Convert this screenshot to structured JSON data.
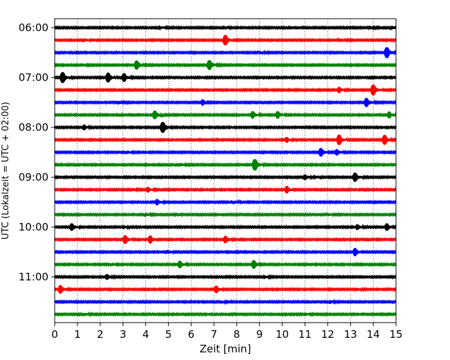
{
  "chart_data": {
    "type": "line",
    "title": "",
    "xlabel": "Zeit  [min]",
    "ylabel": "UTC (Lokalzeit = UTC + 02:00)",
    "xlim": [
      0,
      15
    ],
    "x_ticks": [
      "0",
      "1",
      "2",
      "3",
      "4",
      "5",
      "6",
      "7",
      "8",
      "9",
      "10",
      "11",
      "12",
      "13",
      "14",
      "15"
    ],
    "y_ticks": [
      "06:00",
      "07:00",
      "08:00",
      "09:00",
      "10:00",
      "11:00"
    ],
    "y_tick_traces": [
      0,
      4,
      8,
      12,
      16,
      20
    ],
    "minutes_per_trace": 15,
    "grid_x": "dotted vertical lines at each minute",
    "trace_colors": [
      "#000000",
      "#ff0000",
      "#0000ff",
      "#008000"
    ],
    "traces": [
      {
        "start": "06:00",
        "color": "#000000",
        "events": [
          {
            "t": 4.6,
            "a": 0.25
          },
          {
            "t": 7.5,
            "a": 0.2
          },
          {
            "t": 13.8,
            "a": 0.25
          },
          {
            "t": 14.8,
            "a": 0.2
          }
        ]
      },
      {
        "start": "06:15",
        "color": "#ff0000",
        "events": [
          {
            "t": 7.5,
            "a": 0.7
          },
          {
            "t": 1.3,
            "a": 0.2
          },
          {
            "t": 12.5,
            "a": 0.2
          }
        ]
      },
      {
        "start": "06:30",
        "color": "#0000ff",
        "events": [
          {
            "t": 14.6,
            "a": 0.75
          },
          {
            "t": 9.0,
            "a": 0.2
          }
        ]
      },
      {
        "start": "06:45",
        "color": "#008000",
        "events": [
          {
            "t": 3.6,
            "a": 0.6
          },
          {
            "t": 6.8,
            "a": 0.65
          },
          {
            "t": 1.2,
            "a": 0.2
          }
        ]
      },
      {
        "start": "07:00",
        "color": "#000000",
        "events": [
          {
            "t": 0.35,
            "a": 0.75
          },
          {
            "t": 2.35,
            "a": 0.65
          },
          {
            "t": 3.05,
            "a": 0.55
          }
        ]
      },
      {
        "start": "07:15",
        "color": "#ff0000",
        "events": [
          {
            "t": 14.0,
            "a": 0.75
          },
          {
            "t": 12.5,
            "a": 0.35
          }
        ]
      },
      {
        "start": "07:30",
        "color": "#0000ff",
        "events": [
          {
            "t": 13.7,
            "a": 0.6
          },
          {
            "t": 6.5,
            "a": 0.35
          },
          {
            "t": 2.8,
            "a": 0.2
          }
        ]
      },
      {
        "start": "07:45",
        "color": "#008000",
        "events": [
          {
            "t": 4.4,
            "a": 0.55
          },
          {
            "t": 8.7,
            "a": 0.45
          },
          {
            "t": 9.8,
            "a": 0.45
          },
          {
            "t": 14.7,
            "a": 0.4
          }
        ]
      },
      {
        "start": "08:00",
        "color": "#000000",
        "events": [
          {
            "t": 4.75,
            "a": 0.75
          },
          {
            "t": 1.3,
            "a": 0.3
          }
        ]
      },
      {
        "start": "08:15",
        "color": "#ff0000",
        "events": [
          {
            "t": 12.5,
            "a": 0.7
          },
          {
            "t": 14.5,
            "a": 0.65
          },
          {
            "t": 10.2,
            "a": 0.3
          }
        ]
      },
      {
        "start": "08:30",
        "color": "#0000ff",
        "events": [
          {
            "t": 11.7,
            "a": 0.55
          },
          {
            "t": 12.4,
            "a": 0.35
          },
          {
            "t": 3.2,
            "a": 0.2
          }
        ]
      },
      {
        "start": "08:45",
        "color": "#008000",
        "events": [
          {
            "t": 8.8,
            "a": 0.8
          },
          {
            "t": 5.5,
            "a": 0.25
          }
        ]
      },
      {
        "start": "09:00",
        "color": "#000000",
        "events": [
          {
            "t": 13.2,
            "a": 0.6
          },
          {
            "t": 11.0,
            "a": 0.3
          },
          {
            "t": 11.4,
            "a": 0.25
          }
        ]
      },
      {
        "start": "09:15",
        "color": "#ff0000",
        "events": [
          {
            "t": 10.2,
            "a": 0.45
          },
          {
            "t": 4.1,
            "a": 0.3
          },
          {
            "t": 3.4,
            "a": 0.2
          }
        ]
      },
      {
        "start": "09:30",
        "color": "#0000ff",
        "events": [
          {
            "t": 4.5,
            "a": 0.35
          },
          {
            "t": 7.9,
            "a": 0.2
          }
        ]
      },
      {
        "start": "09:45",
        "color": "#008000",
        "events": [
          {
            "t": 4.0,
            "a": 0.2
          },
          {
            "t": 12.0,
            "a": 0.2
          }
        ]
      },
      {
        "start": "10:00",
        "color": "#000000",
        "events": [
          {
            "t": 0.75,
            "a": 0.45
          },
          {
            "t": 14.6,
            "a": 0.45
          },
          {
            "t": 13.3,
            "a": 0.3
          },
          {
            "t": 3.0,
            "a": 0.25
          }
        ]
      },
      {
        "start": "10:15",
        "color": "#ff0000",
        "events": [
          {
            "t": 3.1,
            "a": 0.55
          },
          {
            "t": 4.2,
            "a": 0.5
          },
          {
            "t": 7.5,
            "a": 0.45
          }
        ]
      },
      {
        "start": "10:30",
        "color": "#0000ff",
        "events": [
          {
            "t": 13.2,
            "a": 0.5
          },
          {
            "t": 5.0,
            "a": 0.2
          }
        ]
      },
      {
        "start": "10:45",
        "color": "#008000",
        "events": [
          {
            "t": 5.5,
            "a": 0.45
          },
          {
            "t": 8.75,
            "a": 0.55
          },
          {
            "t": 2.5,
            "a": 0.2
          }
        ]
      },
      {
        "start": "11:00",
        "color": "#000000",
        "events": [
          {
            "t": 2.3,
            "a": 0.3
          },
          {
            "t": 9.2,
            "a": 0.25
          }
        ]
      },
      {
        "start": "11:15",
        "color": "#ff0000",
        "events": [
          {
            "t": 0.25,
            "a": 0.55
          },
          {
            "t": 7.1,
            "a": 0.45
          },
          {
            "t": 13.3,
            "a": 0.2
          }
        ]
      },
      {
        "start": "11:30",
        "color": "#0000ff",
        "events": [
          {
            "t": 7.3,
            "a": 0.2
          },
          {
            "t": 12.1,
            "a": 0.2
          }
        ]
      },
      {
        "start": "11:45",
        "color": "#008000",
        "events": [
          {
            "t": 1.3,
            "a": 0.2
          },
          {
            "t": 11.0,
            "a": 0.2
          }
        ]
      }
    ]
  }
}
